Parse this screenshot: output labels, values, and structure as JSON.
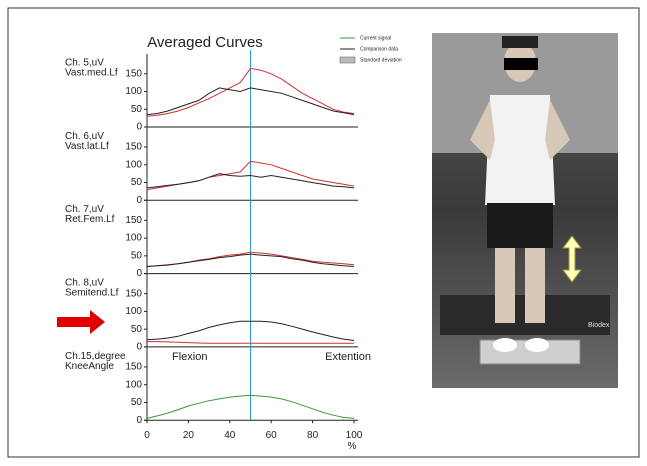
{
  "legend": [
    {
      "label": "Current signal",
      "color": "#3a9a3a"
    },
    {
      "label": "Comparison data",
      "color": "#222222"
    },
    {
      "label": "Standard deviation",
      "color": "#bbbbbb"
    }
  ],
  "photo_label": "Biodex",
  "chart_data": [
    {
      "type": "line",
      "title": "Averaged Curves",
      "channel": "Ch. 5,uV",
      "muscle": "Vast.med.Lf",
      "x": [
        0,
        5,
        10,
        15,
        20,
        25,
        30,
        35,
        40,
        45,
        50,
        55,
        60,
        65,
        70,
        75,
        80,
        85,
        90,
        95,
        100
      ],
      "xlim": [
        0,
        100
      ],
      "ylim": [
        0,
        200
      ],
      "yticks": [
        0,
        50,
        100,
        150
      ],
      "marker_x": 50,
      "marker_color": "#2aa0c0",
      "series": [
        {
          "color": "#d03030",
          "values": [
            30,
            33,
            38,
            45,
            55,
            68,
            80,
            95,
            110,
            125,
            165,
            160,
            150,
            135,
            115,
            95,
            80,
            65,
            50,
            42,
            38
          ]
        },
        {
          "color": "#222222",
          "values": [
            35,
            38,
            45,
            55,
            65,
            75,
            95,
            110,
            105,
            100,
            110,
            105,
            100,
            95,
            85,
            75,
            65,
            55,
            45,
            40,
            35
          ]
        }
      ]
    },
    {
      "type": "line",
      "channel": "Ch. 6,uV",
      "muscle": "Vast.lat.Lf",
      "x": [
        0,
        5,
        10,
        15,
        20,
        25,
        30,
        35,
        40,
        45,
        50,
        55,
        60,
        65,
        70,
        75,
        80,
        85,
        90,
        95,
        100
      ],
      "xlim": [
        0,
        100
      ],
      "ylim": [
        0,
        200
      ],
      "yticks": [
        0,
        50,
        100,
        150
      ],
      "marker_x": 50,
      "marker_color": "#2aa0c0",
      "series": [
        {
          "color": "#d03030",
          "values": [
            30,
            35,
            40,
            45,
            50,
            55,
            65,
            70,
            75,
            80,
            110,
            105,
            100,
            90,
            80,
            70,
            60,
            55,
            50,
            45,
            40
          ]
        },
        {
          "color": "#222222",
          "values": [
            35,
            38,
            42,
            45,
            50,
            55,
            65,
            75,
            70,
            68,
            70,
            65,
            70,
            65,
            60,
            55,
            50,
            45,
            40,
            38,
            35
          ]
        }
      ]
    },
    {
      "type": "line",
      "channel": "Ch. 7,uV",
      "muscle": "Ret.Fem.Lf",
      "x": [
        0,
        5,
        10,
        15,
        20,
        25,
        30,
        35,
        40,
        45,
        50,
        55,
        60,
        65,
        70,
        75,
        80,
        85,
        90,
        95,
        100
      ],
      "xlim": [
        0,
        100
      ],
      "ylim": [
        0,
        200
      ],
      "yticks": [
        0,
        50,
        100,
        150
      ],
      "marker_x": 50,
      "marker_color": "#2aa0c0",
      "series": [
        {
          "color": "#d03030",
          "values": [
            20,
            22,
            25,
            28,
            32,
            38,
            42,
            48,
            52,
            55,
            60,
            58,
            55,
            50,
            45,
            40,
            35,
            32,
            30,
            28,
            25
          ]
        },
        {
          "color": "#222222",
          "values": [
            20,
            22,
            24,
            28,
            32,
            36,
            40,
            45,
            48,
            52,
            55,
            52,
            50,
            48,
            42,
            38,
            32,
            28,
            25,
            22,
            20
          ]
        }
      ]
    },
    {
      "type": "line",
      "channel": "Ch. 8,uV",
      "muscle": "Semitend.Lf",
      "annotations": [
        "Flexion",
        "Extention"
      ],
      "x": [
        0,
        5,
        10,
        15,
        20,
        25,
        30,
        35,
        40,
        45,
        50,
        55,
        60,
        65,
        70,
        75,
        80,
        85,
        90,
        95,
        100
      ],
      "xlim": [
        0,
        100
      ],
      "ylim": [
        0,
        200
      ],
      "yticks": [
        0,
        50,
        100,
        150
      ],
      "marker_x": 50,
      "marker_color": "#2aa0c0",
      "series": [
        {
          "color": "#d03030",
          "values": [
            15,
            15,
            14,
            13,
            12,
            11,
            10,
            10,
            10,
            10,
            10,
            10,
            10,
            10,
            10,
            10,
            10,
            10,
            10,
            10,
            10
          ]
        },
        {
          "color": "#222222",
          "values": [
            20,
            22,
            25,
            30,
            38,
            45,
            55,
            62,
            68,
            72,
            72,
            72,
            70,
            65,
            58,
            50,
            42,
            35,
            28,
            22,
            18
          ]
        }
      ]
    },
    {
      "type": "line",
      "channel": "Ch.15,degree",
      "muscle": "KneeAngle",
      "xlabel": "%",
      "x": [
        0,
        5,
        10,
        15,
        20,
        25,
        30,
        35,
        40,
        45,
        50,
        55,
        60,
        65,
        70,
        75,
        80,
        85,
        90,
        95,
        100
      ],
      "xlim": [
        0,
        100
      ],
      "ylim": [
        0,
        200
      ],
      "yticks": [
        0,
        50,
        100,
        150
      ],
      "xticks": [
        0,
        20,
        40,
        60,
        80,
        100
      ],
      "marker_x": 50,
      "marker_color": "#2aa0c0",
      "series": [
        {
          "color": "#3a9a3a",
          "values": [
            5,
            12,
            20,
            30,
            40,
            48,
            55,
            60,
            65,
            68,
            70,
            68,
            65,
            60,
            52,
            42,
            32,
            22,
            14,
            8,
            5
          ]
        }
      ]
    }
  ]
}
